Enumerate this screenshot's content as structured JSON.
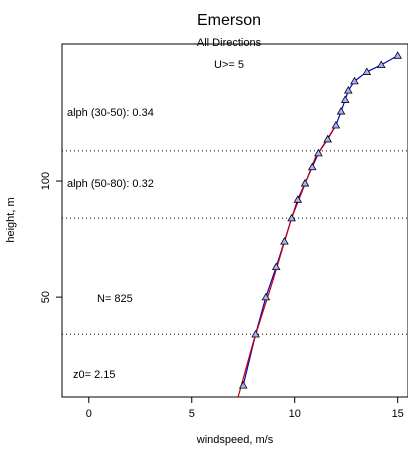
{
  "chart_data": {
    "type": "line",
    "title": "Emerson",
    "subtitle": "All Directions",
    "filter_label": "U>= 5",
    "xlabel": "windspeed, m/s",
    "ylabel": "height, m",
    "xlim": [
      -1.3,
      15.5
    ],
    "ylim": [
      7,
      159
    ],
    "xticks": [
      0,
      5,
      10,
      15
    ],
    "yticks": [
      50,
      100
    ],
    "annotations": {
      "alpha_30_50": "alph (30-50): 0.34",
      "alpha_50_80": "alph (50-80): 0.32",
      "n": "N= 825",
      "z0": "z0= 2.15"
    },
    "reference_heights": [
      34,
      84,
      113
    ],
    "series": [
      {
        "color": "#0000cc",
        "marker": "triangle",
        "x": [
          7.5,
          8.1,
          8.6,
          9.1,
          9.5,
          9.85,
          10.15,
          10.5,
          10.85,
          11.15,
          11.6,
          12.0,
          12.25,
          12.45,
          12.6,
          12.9,
          13.5,
          14.2,
          15.0
        ],
        "y": [
          12,
          34,
          50,
          63,
          74,
          84,
          92,
          99,
          106,
          112,
          118,
          124,
          130,
          135,
          139,
          143,
          147,
          150,
          154
        ]
      },
      {
        "color": "#cc0000",
        "marker": "none",
        "x": [
          7.25,
          8.0,
          8.9,
          9.85,
          11.0,
          12.0
        ],
        "y": [
          7,
          31,
          56,
          84,
          110,
          124
        ]
      }
    ]
  }
}
